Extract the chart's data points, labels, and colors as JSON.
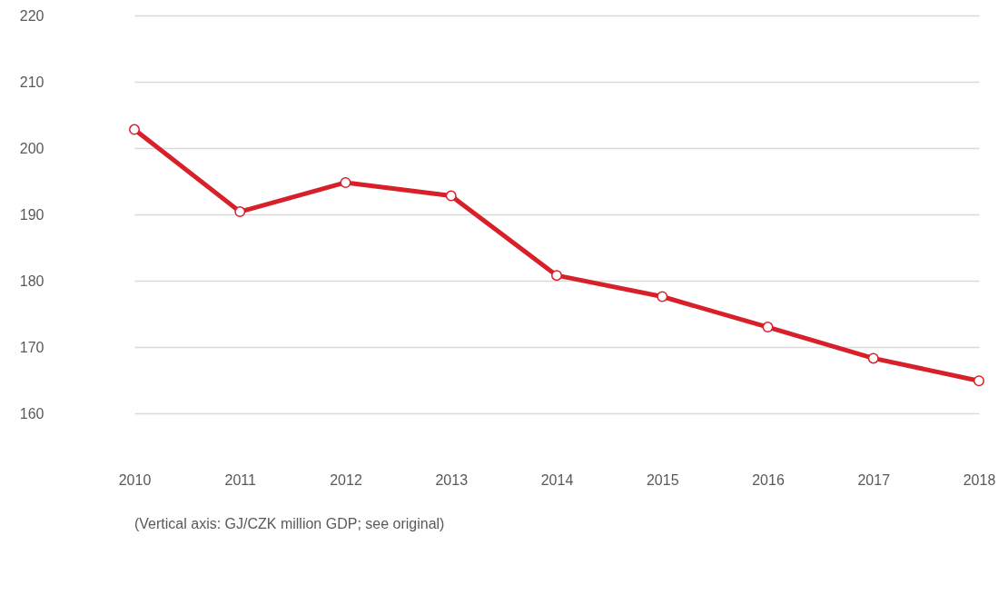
{
  "chart_data": {
    "type": "line",
    "categories": [
      "2010",
      "2011",
      "2012",
      "2013",
      "2014",
      "2015",
      "2016",
      "2017",
      "2018"
    ],
    "series": [
      {
        "color": "#d7202a",
        "values": [
          202.8,
          190.4,
          194.8,
          192.8,
          180.8,
          177.6,
          173.0,
          168.3,
          164.9
        ]
      }
    ],
    "ylim": [
      160,
      220
    ],
    "yticks": [
      160,
      170,
      180,
      190,
      200,
      210,
      220
    ],
    "grid": "y",
    "marker": "circle",
    "line_style": "solid",
    "annotations": [
      "(Vertical axis: GJ/CZK million GDP; see original)"
    ]
  }
}
